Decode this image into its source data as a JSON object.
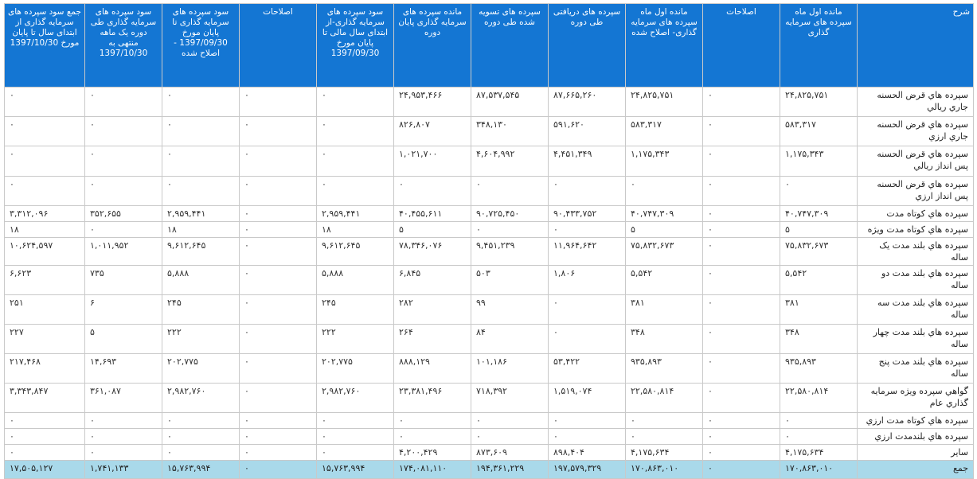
{
  "columns": [
    "شرح",
    "مانده اول ماه سپرده های سرمایه گذاری",
    "اصلاحات",
    "مانده اول ماه سپرده های سرمایه گذاری- اصلاح شده",
    "سپرده های دریافتی طی دوره",
    "سپرده های تسویه شده طی دوره",
    "مانده سپرده های سرمایه گذاری پایان دوره",
    "سود سپرده های سرمایه گذاری-از ابتدای سال مالی تا پایان مورخ 1397/09/30",
    "اصلاحات",
    "سود سپرده های سرمایه گذاری تا پایان مورخ 1397/09/30 - اصلاح شده",
    "سود سپرده های سرمایه گذاری طی دوره یک ماهه منتهی به 1397/10/30",
    "جمع سود سپرده های سرمایه گذاری از ابتدای سال تا پایان مورخ 1397/10/30"
  ],
  "rows": [
    [
      "سپرده هاي قرض الحسنه جاري ريالي",
      "۲۴,۸۲۵,۷۵۱",
      "۰",
      "۲۴,۸۲۵,۷۵۱",
      "۸۷,۶۶۵,۲۶۰",
      "۸۷,۵۳۷,۵۴۵",
      "۲۴,۹۵۳,۴۶۶",
      "۰",
      "۰",
      "۰",
      "۰",
      "۰"
    ],
    [
      "سپرده هاي قرض الحسنه جاري ارزي",
      "۵۸۳,۳۱۷",
      "۰",
      "۵۸۳,۳۱۷",
      "۵۹۱,۶۲۰",
      "۳۴۸,۱۳۰",
      "۸۲۶,۸۰۷",
      "۰",
      "۰",
      "۰",
      "۰",
      "۰"
    ],
    [
      "سپرده هاي قرض الحسنه پس انداز ريالي",
      "۱,۱۷۵,۳۴۳",
      "۰",
      "۱,۱۷۵,۳۴۳",
      "۴,۴۵۱,۳۴۹",
      "۴,۶۰۴,۹۹۲",
      "۱,۰۲۱,۷۰۰",
      "۰",
      "۰",
      "۰",
      "۰",
      "۰"
    ],
    [
      "سپرده هاي قرض الحسنه پس انداز ارزي",
      "۰",
      "۰",
      "۰",
      "۰",
      "۰",
      "۰",
      "۰",
      "۰",
      "۰",
      "۰",
      "۰"
    ],
    [
      "سپرده هاي كوتاه مدت",
      "۴۰,۷۴۷,۳۰۹",
      "۰",
      "۴۰,۷۴۷,۳۰۹",
      "۹۰,۴۳۳,۷۵۲",
      "۹۰,۷۲۵,۴۵۰",
      "۴۰,۴۵۵,۶۱۱",
      "۲,۹۵۹,۴۴۱",
      "۰",
      "۲,۹۵۹,۴۴۱",
      "۳۵۲,۶۵۵",
      "۳,۳۱۲,۰۹۶"
    ],
    [
      "سپرده هاي كوتاه مدت ويژه",
      "۵",
      "۰",
      "۵",
      "۰",
      "۰",
      "۵",
      "۱۸",
      "۰",
      "۱۸",
      "۰",
      "۱۸"
    ],
    [
      "سپرده هاي بلند مدت يک ساله",
      "۷۵,۸۳۲,۶۷۳",
      "۰",
      "۷۵,۸۳۲,۶۷۳",
      "۱۱,۹۶۴,۶۴۲",
      "۹,۴۵۱,۲۳۹",
      "۷۸,۳۴۶,۰۷۶",
      "۹,۶۱۲,۶۴۵",
      "۰",
      "۹,۶۱۲,۶۴۵",
      "۱,۰۱۱,۹۵۲",
      "۱۰,۶۲۴,۵۹۷"
    ],
    [
      "سپرده هاي بلند مدت دو ساله",
      "۵,۵۴۲",
      "۰",
      "۵,۵۴۲",
      "۱,۸۰۶",
      "۵۰۳",
      "۶,۸۴۵",
      "۵,۸۸۸",
      "۰",
      "۵,۸۸۸",
      "۷۳۵",
      "۶,۶۲۳"
    ],
    [
      "سپرده هاي بلند مدت سه ساله",
      "۳۸۱",
      "۰",
      "۳۸۱",
      "۰",
      "۹۹",
      "۲۸۲",
      "۲۴۵",
      "۰",
      "۲۴۵",
      "۶",
      "۲۵۱"
    ],
    [
      "سپرده هاي بلند مدت چهار ساله",
      "۳۴۸",
      "۰",
      "۳۴۸",
      "۰",
      "۸۴",
      "۲۶۴",
      "۲۲۲",
      "۰",
      "۲۲۲",
      "۵",
      "۲۲۷"
    ],
    [
      "سپرده هاي بلند مدت پنج ساله",
      "۹۳۵,۸۹۳",
      "۰",
      "۹۳۵,۸۹۳",
      "۵۳,۴۲۲",
      "۱۰۱,۱۸۶",
      "۸۸۸,۱۲۹",
      "۲۰۲,۷۷۵",
      "۰",
      "۲۰۲,۷۷۵",
      "۱۴,۶۹۳",
      "۲۱۷,۴۶۸"
    ],
    [
      "گواهي سپرده ويژه سرمايه گذاري عام",
      "۲۲,۵۸۰,۸۱۴",
      "۰",
      "۲۲,۵۸۰,۸۱۴",
      "۱,۵۱۹,۰۷۴",
      "۷۱۸,۳۹۲",
      "۲۳,۳۸۱,۴۹۶",
      "۲,۹۸۲,۷۶۰",
      "۰",
      "۲,۹۸۲,۷۶۰",
      "۳۶۱,۰۸۷",
      "۳,۳۴۳,۸۴۷"
    ],
    [
      "سپرده هاي كوتاه مدت ارزي",
      "۰",
      "۰",
      "۰",
      "۰",
      "۰",
      "۰",
      "۰",
      "۰",
      "۰",
      "۰",
      "۰"
    ],
    [
      "سپرده هاي بلندمدت ارزي",
      "۰",
      "۰",
      "۰",
      "۰",
      "۰",
      "۰",
      "۰",
      "۰",
      "۰",
      "۰",
      "۰"
    ],
    [
      "ساير",
      "۴,۱۷۵,۶۳۴",
      "۰",
      "۴,۱۷۵,۶۳۴",
      "۸۹۸,۴۰۴",
      "۸۷۳,۶۰۹",
      "۴,۲۰۰,۴۲۹",
      "۰",
      "۰",
      "۰",
      "۰",
      "۰"
    ]
  ],
  "total": [
    "جمع",
    "۱۷۰,۸۶۳,۰۱۰",
    "۰",
    "۱۷۰,۸۶۳,۰۱۰",
    "۱۹۷,۵۷۹,۳۲۹",
    "۱۹۴,۳۶۱,۲۲۹",
    "۱۷۴,۰۸۱,۱۱۰",
    "۱۵,۷۶۳,۹۹۴",
    "۰",
    "۱۵,۷۶۳,۹۹۴",
    "۱,۷۴۱,۱۳۳",
    "۱۷,۵۰۵,۱۲۷"
  ],
  "colors": {
    "header_bg": "#1476d3",
    "total_bg": "#a9d9ea",
    "border": "#c9c9c9"
  }
}
